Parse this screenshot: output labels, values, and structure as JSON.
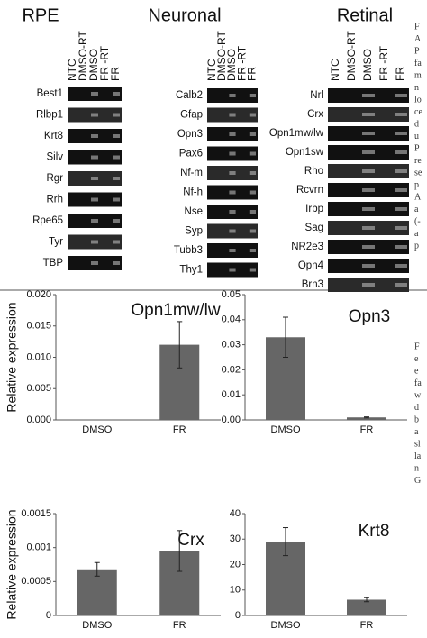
{
  "gels": [
    {
      "title": "RPE",
      "lanes": [
        "NTC",
        "DMSO-RT",
        "DMSO",
        "FR -RT",
        "FR"
      ],
      "genes": [
        "Best1",
        "Rlbp1",
        "Krt8",
        "Silv",
        "Rgr",
        "Rrh",
        "Rpe65",
        "Tyr",
        "TBP"
      ]
    },
    {
      "title": "Neuronal",
      "lanes": [
        "NTC",
        "DMSO-RT",
        "DMSO",
        "FR -RT",
        "FR"
      ],
      "genes": [
        "Calb2",
        "Gfap",
        "Opn3",
        "Pax6",
        "Nf-m",
        "Nf-h",
        "Nse",
        "Syp",
        "Tubb3",
        "Thy1"
      ]
    },
    {
      "title": "Retinal",
      "lanes": [
        "NTC",
        "DMSO-RT",
        "DMSO",
        "FR -RT",
        "FR"
      ],
      "genes": [
        "Nrl",
        "Crx",
        "Opn1mw/lw",
        "Opn1sw",
        "Rho",
        "Rcvrn",
        "Irbp",
        "Sag",
        "NR2e3",
        "Opn4",
        "Brn3"
      ]
    }
  ],
  "caption_top": [
    "F",
    "A",
    "P",
    "fa",
    "m",
    "n",
    "lo",
    "ce",
    "d",
    "u",
    "P",
    "re",
    "se",
    "p",
    "A",
    "a",
    "(-",
    "a",
    "p"
  ],
  "caption_bottom": [
    "F",
    "e",
    "e",
    "fa",
    "w",
    "d",
    "b",
    "a",
    "sl",
    "la",
    "n",
    "G"
  ],
  "chart_data": [
    {
      "type": "bar",
      "title": "Opn1mw/lw",
      "ylabel": "Relative expression",
      "categories": [
        "DMSO",
        "FR"
      ],
      "values": [
        0,
        0.012
      ],
      "errors": [
        null,
        0.0037
      ],
      "color": "#666666",
      "ylim": [
        0,
        0.02
      ],
      "yticks": [
        {
          "value": 0,
          "label": "0.000"
        },
        {
          "value": 0.005,
          "label": "0.005"
        },
        {
          "value": 0.01,
          "label": "0.010"
        },
        {
          "value": 0.015,
          "label": "0.015"
        },
        {
          "value": 0.02,
          "label": "0.020"
        }
      ]
    },
    {
      "type": "bar",
      "title": "Opn3",
      "categories": [
        "DMSO",
        "FR"
      ],
      "values": [
        0.033,
        0.001
      ],
      "errors": [
        0.008,
        0.0002
      ],
      "color": "#666666",
      "ylim": [
        0,
        0.05
      ],
      "yticks": [
        {
          "value": 0,
          "label": "0.00"
        },
        0.01,
        0.02,
        0.03,
        0.04,
        0.05
      ]
    },
    {
      "type": "bar",
      "title": "Crx",
      "ylabel": "Relative expression",
      "categories": [
        "DMSO",
        "FR"
      ],
      "values": [
        0.00068,
        0.00095
      ],
      "errors": [
        0.0001,
        0.0003
      ],
      "color": "#666666",
      "ylim": [
        0,
        0.0015
      ],
      "yticks": [
        0,
        0.0005,
        0.001,
        0.0015
      ]
    },
    {
      "type": "bar",
      "title": "Krt8",
      "categories": [
        "DMSO",
        "FR"
      ],
      "values": [
        29,
        6.2
      ],
      "errors": [
        5.5,
        0.8
      ],
      "color": "#666666",
      "ylim": [
        0,
        40
      ],
      "yticks": [
        0,
        10,
        20,
        30,
        40
      ]
    }
  ]
}
